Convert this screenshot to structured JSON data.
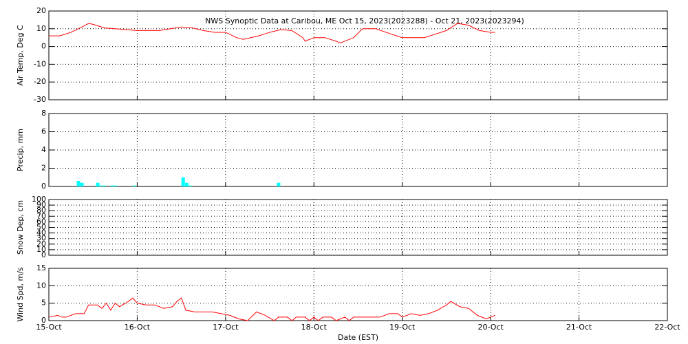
{
  "chart_data": [
    {
      "type": "line",
      "title": "NWS Synoptic Data at Caribou, ME   Oct 15, 2023(2023288) - Oct 21, 2023(2023294)",
      "ylabel": "Air Temp, Deg C",
      "xlim": [
        15,
        22
      ],
      "ylim": [
        -30,
        20
      ],
      "yticks": [
        -30,
        -20,
        -10,
        0,
        10,
        20
      ],
      "grid": true,
      "x": [
        15.0,
        15.125,
        15.25,
        15.375,
        15.45,
        15.5,
        15.625,
        15.75,
        15.875,
        16.0,
        16.125,
        16.25,
        16.375,
        16.5,
        16.625,
        16.75,
        16.875,
        17.0,
        17.125,
        17.2,
        17.375,
        17.5,
        17.625,
        17.75,
        17.875,
        17.9,
        18.0,
        18.125,
        18.25,
        18.3,
        18.45,
        18.55,
        18.7,
        18.875,
        19.0,
        19.125,
        19.25,
        19.375,
        19.5,
        19.625,
        19.75,
        19.875,
        20.0,
        20.05
      ],
      "series": [
        {
          "color": "#ff0000",
          "values": [
            6,
            6,
            8,
            11,
            13,
            12.5,
            10.5,
            10,
            9.5,
            9,
            9,
            9,
            10,
            11,
            10.5,
            9,
            8,
            8,
            5,
            4,
            6,
            8,
            9.5,
            9,
            5,
            3,
            5,
            5,
            3,
            2,
            5,
            10,
            10,
            7,
            5,
            5,
            5,
            7,
            9,
            13,
            12,
            9,
            8,
            8
          ]
        }
      ]
    },
    {
      "type": "bar",
      "ylabel": "Precip, mm",
      "xlim": [
        15,
        22
      ],
      "ylim": [
        0,
        8
      ],
      "yticks": [
        0,
        2,
        4,
        6,
        8
      ],
      "grid": true,
      "x": [
        15.335,
        15.374,
        15.553,
        15.59,
        15.63,
        15.72,
        15.755,
        15.97,
        16.52,
        16.56,
        16.6,
        17.6
      ],
      "series": [
        {
          "color": "#00ffff",
          "values": [
            0.6,
            0.4,
            0.4,
            0.1,
            0.1,
            0.1,
            0.1,
            0.1,
            1.0,
            0.4,
            0.1,
            0.4
          ]
        }
      ]
    },
    {
      "type": "line",
      "ylabel": "Snow Dep, cm",
      "xlim": [
        15,
        22
      ],
      "ylim": [
        0,
        100
      ],
      "yticks": [
        0,
        10,
        20,
        30,
        40,
        50,
        60,
        70,
        80,
        90,
        100
      ],
      "grid": true
    },
    {
      "type": "line",
      "ylabel": "Wind Spd, m/s",
      "xlabel": "Date (EST)",
      "xlim": [
        15,
        22
      ],
      "ylim": [
        0,
        15
      ],
      "yticks": [
        0,
        5,
        10,
        15
      ],
      "grid": true,
      "xticks": [
        {
          "value": 15,
          "label": "15-Oct"
        },
        {
          "value": 16,
          "label": "16-Oct"
        },
        {
          "value": 17,
          "label": "17-Oct"
        },
        {
          "value": 18,
          "label": "18-Oct"
        },
        {
          "value": 19,
          "label": "19-Oct"
        },
        {
          "value": 20,
          "label": "20-Oct"
        },
        {
          "value": 21,
          "label": "21-Oct"
        },
        {
          "value": 22,
          "label": "22-Oct"
        }
      ],
      "x": [
        15.0,
        15.1,
        15.15,
        15.2,
        15.3,
        15.4,
        15.45,
        15.55,
        15.6,
        15.65,
        15.7,
        15.75,
        15.8,
        15.9,
        15.95,
        16.0,
        16.1,
        16.2,
        16.3,
        16.4,
        16.45,
        16.5,
        16.55,
        16.65,
        16.75,
        16.85,
        16.95,
        17.05,
        17.15,
        17.25,
        17.35,
        17.45,
        17.55,
        17.6,
        17.7,
        17.75,
        17.8,
        17.9,
        17.95,
        18.0,
        18.05,
        18.1,
        18.2,
        18.25,
        18.35,
        18.4,
        18.45,
        18.55,
        18.65,
        18.75,
        18.85,
        18.95,
        19.0,
        19.1,
        19.2,
        19.3,
        19.4,
        19.5,
        19.55,
        19.65,
        19.75,
        19.85,
        19.95,
        20.0,
        20.05
      ],
      "series": [
        {
          "color": "#ff0000",
          "values": [
            1,
            1.5,
            1,
            1,
            2,
            2,
            4.5,
            4.5,
            3.5,
            5,
            3,
            5,
            4,
            5.5,
            6.5,
            5,
            4.5,
            4.5,
            3.5,
            4,
            5.5,
            6.5,
            3,
            2.5,
            2.5,
            2.5,
            2,
            1.5,
            0.5,
            0,
            2.5,
            1.5,
            0,
            1,
            1,
            0,
            1,
            1,
            0,
            1,
            0,
            1,
            1,
            0,
            1,
            0,
            1,
            1,
            1,
            1,
            2,
            2,
            1,
            2,
            1.5,
            2,
            3,
            4.5,
            5.5,
            4,
            3.5,
            1.5,
            0.5,
            1,
            1.5
          ]
        }
      ]
    }
  ]
}
